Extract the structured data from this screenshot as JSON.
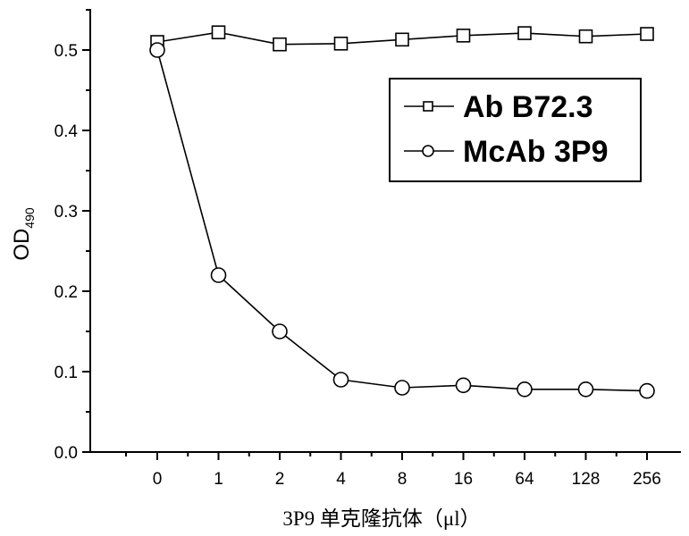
{
  "chart_data": {
    "type": "line",
    "categories": [
      "0",
      "1",
      "2",
      "4",
      "8",
      "16",
      "64",
      "128",
      "256"
    ],
    "series": [
      {
        "name": "Ab B72.3",
        "marker": "square",
        "values": [
          0.51,
          0.522,
          0.507,
          0.508,
          0.513,
          0.518,
          0.521,
          0.517,
          0.52
        ]
      },
      {
        "name": "McAb 3P9",
        "marker": "circle",
        "values": [
          0.5,
          0.22,
          0.15,
          0.09,
          0.08,
          0.083,
          0.078,
          0.078,
          0.076
        ]
      }
    ],
    "xlabel": "3P9 单克隆抗体（μl）",
    "ylabel": {
      "main": "OD",
      "sub": "490"
    },
    "ylim": [
      0.0,
      0.55
    ],
    "yticks": [
      "0.0",
      "0.1",
      "0.2",
      "0.3",
      "0.4",
      "0.5"
    ],
    "ytick_values": [
      0.0,
      0.1,
      0.2,
      0.3,
      0.4,
      0.5
    ],
    "legend_position": "upper-right-inside",
    "grid": false
  }
}
